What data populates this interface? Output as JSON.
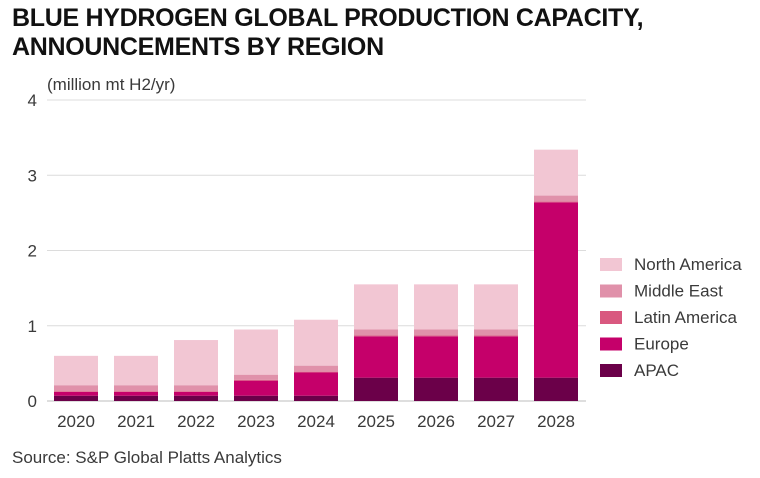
{
  "chart_data": {
    "type": "bar",
    "stacked": true,
    "title_lines": [
      "BLUE HYDROGEN GLOBAL PRODUCTION CAPACITY,",
      "ANNOUNCEMENTS BY REGION"
    ],
    "ylabel": "(million mt H2/yr)",
    "xlabel": "",
    "ylim": [
      0,
      4
    ],
    "yticks": [
      0,
      1,
      2,
      3,
      4
    ],
    "grid": true,
    "legend_position": "right",
    "categories": [
      "2020",
      "2021",
      "2022",
      "2023",
      "2024",
      "2025",
      "2026",
      "2027",
      "2028"
    ],
    "series": [
      {
        "name": "APAC",
        "color": "#6b0049",
        "values": [
          0.07,
          0.07,
          0.07,
          0.07,
          0.07,
          0.31,
          0.31,
          0.31,
          0.31
        ]
      },
      {
        "name": "Europe",
        "color": "#c5006a",
        "values": [
          0.05,
          0.05,
          0.05,
          0.2,
          0.31,
          0.55,
          0.55,
          0.55,
          2.33
        ]
      },
      {
        "name": "Latin America",
        "color": "#d9587f",
        "values": [
          0.01,
          0.01,
          0.01,
          0.01,
          0.01,
          0.01,
          0.01,
          0.01,
          0.01
        ]
      },
      {
        "name": "Middle East",
        "color": "#e091aa",
        "values": [
          0.08,
          0.08,
          0.08,
          0.07,
          0.08,
          0.08,
          0.08,
          0.08,
          0.08
        ]
      },
      {
        "name": "North America",
        "color": "#f2c6d3",
        "values": [
          0.39,
          0.39,
          0.6,
          0.6,
          0.61,
          0.6,
          0.6,
          0.6,
          0.61
        ]
      }
    ],
    "legend_order": [
      "North America",
      "Middle East",
      "Latin America",
      "Europe",
      "APAC"
    ]
  },
  "source": "Source: S&P Global Platts Analytics",
  "colors": {
    "grid": "#dcdcdc",
    "axis": "#bdbdbd",
    "text": "#3a3a3a"
  }
}
